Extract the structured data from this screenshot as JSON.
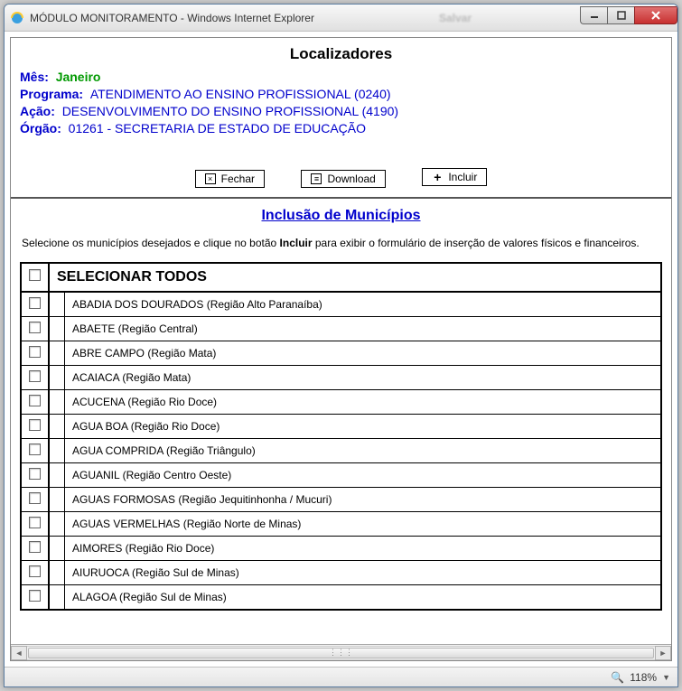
{
  "window": {
    "title": "MÓDULO MONITORAMENTO - Windows Internet Explorer",
    "ghost_text": "Salvar"
  },
  "page": {
    "title": "Localizadores"
  },
  "info": {
    "mes_label": "Mês:",
    "mes_value": "Janeiro",
    "programa_label": "Programa:",
    "programa_value": "ATENDIMENTO AO ENSINO PROFISSIONAL (0240)",
    "acao_label": "Ação:",
    "acao_value": "DESENVOLVIMENTO DO ENSINO PROFISSIONAL (4190)",
    "orgao_label": "Órgão:",
    "orgao_value": "01261 - SECRETARIA DE ESTADO DE EDUCAÇÃO"
  },
  "buttons": {
    "fechar": "Fechar",
    "download": "Download",
    "incluir": "Incluir"
  },
  "subsection": {
    "title": "Inclusão de Municípios",
    "instruction_pre": "Selecione os municípios desejados e clique no botão ",
    "instruction_bold": "Incluir",
    "instruction_post": " para exibir o formulário de inserção de valores físicos e financeiros."
  },
  "list": {
    "select_all": "SELECIONAR TODOS",
    "items": [
      "ABADIA DOS DOURADOS (Região Alto Paranaíba)",
      "ABAETE (Região Central)",
      "ABRE CAMPO (Região Mata)",
      "ACAIACA (Região Mata)",
      "ACUCENA (Região Rio Doce)",
      "AGUA BOA (Região Rio Doce)",
      "AGUA COMPRIDA (Região Triângulo)",
      "AGUANIL (Região Centro Oeste)",
      "AGUAS FORMOSAS (Região Jequitinhonha / Mucuri)",
      "AGUAS VERMELHAS (Região Norte de Minas)",
      "AIMORES (Região Rio Doce)",
      "AIURUOCA (Região Sul de Minas)",
      "ALAGOA (Região Sul de Minas)"
    ]
  },
  "status": {
    "zoom": "118%"
  },
  "colors": {
    "link_blue": "#0000cc",
    "green": "#009900"
  }
}
